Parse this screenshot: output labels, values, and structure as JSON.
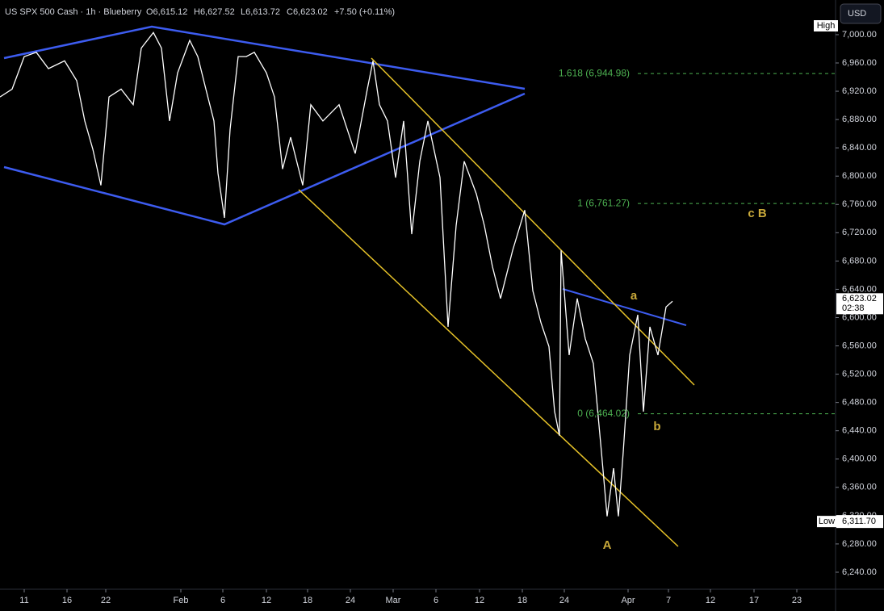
{
  "chart_data": {
    "type": "line",
    "title": "US SPX 500 Cash · 1h · Blueberry",
    "ohlc": [
      "O6,615.12",
      "H6,627.52",
      "L6,613.72",
      "C6,623.02"
    ],
    "change": "+7.50 (+0.11%)",
    "currency": "USD",
    "color": "#ffffff",
    "x": [
      0,
      3,
      6,
      9,
      12,
      16,
      19,
      21,
      23,
      25,
      27,
      30,
      33,
      35,
      38,
      40,
      42,
      44,
      47,
      49,
      51,
      53,
      54,
      55.6,
      57,
      59,
      61,
      63,
      66,
      68,
      70,
      72,
      75,
      77,
      80,
      84,
      88,
      91,
      92.4,
      94,
      96,
      98,
      100,
      102,
      104,
      106,
      109,
      111,
      113,
      115,
      118,
      120,
      122,
      124,
      127,
      130,
      132,
      134,
      136,
      137.4,
      138.6,
      139,
      141,
      143,
      145,
      147,
      149,
      150.4,
      152,
      153.2,
      154.4,
      156,
      158,
      159.4,
      161,
      163,
      165,
      166.6
    ],
    "values": [
      6912,
      6923,
      6969,
      6975,
      6952,
      6963,
      6935,
      6878,
      6838,
      6787,
      6912,
      6923,
      6901,
      6981,
      7003,
      6981,
      6878,
      6946,
      6992,
      6969,
      6923,
      6878,
      6804,
      6741,
      6866,
      6969,
      6969,
      6975,
      6946,
      6912,
      6810,
      6855,
      6787,
      6901,
      6878,
      6901,
      6832,
      6923,
      6963,
      6901,
      6878,
      6798,
      6878,
      6718,
      6821,
      6878,
      6798,
      6587,
      6730,
      6821,
      6775,
      6730,
      6672,
      6627,
      6695,
      6752,
      6638,
      6593,
      6559,
      6467,
      6433,
      6695,
      6547,
      6627,
      6570,
      6535,
      6410,
      6319,
      6387,
      6319,
      6410,
      6547,
      6604,
      6467,
      6587,
      6547,
      6615,
      6623
    ],
    "xlim": [
      0,
      207
    ],
    "ylim": [
      6216,
      7049
    ],
    "xticks": [
      {
        "value": 6,
        "label": "11"
      },
      {
        "value": 16.6,
        "label": "16"
      },
      {
        "value": 26.2,
        "label": "22"
      },
      {
        "value": 44.8,
        "label": "Feb"
      },
      {
        "value": 55.2,
        "label": "6"
      },
      {
        "value": 66,
        "label": "12"
      },
      {
        "value": 76.2,
        "label": "18"
      },
      {
        "value": 86.8,
        "label": "24"
      },
      {
        "value": 97.4,
        "label": "Mar"
      },
      {
        "value": 108,
        "label": "6"
      },
      {
        "value": 118.8,
        "label": "12"
      },
      {
        "value": 129.4,
        "label": "18"
      },
      {
        "value": 139.8,
        "label": "24"
      },
      {
        "value": 155.6,
        "label": "Apr"
      },
      {
        "value": 165.6,
        "label": "7"
      },
      {
        "value": 176,
        "label": "12"
      },
      {
        "value": 186.8,
        "label": "17"
      },
      {
        "value": 197.4,
        "label": "23"
      }
    ],
    "yticks": [
      {
        "value": 6240,
        "label": "6,240.00"
      },
      {
        "value": 6280,
        "label": "6,280.00"
      },
      {
        "value": 6320,
        "label": "6,320.00"
      },
      {
        "value": 6360,
        "label": "6,360.00"
      },
      {
        "value": 6400,
        "label": "6,400.00"
      },
      {
        "value": 6440,
        "label": "6,440.00"
      },
      {
        "value": 6480,
        "label": "6,480.00"
      },
      {
        "value": 6520,
        "label": "6,520.00"
      },
      {
        "value": 6560,
        "label": "6,560.00"
      },
      {
        "value": 6600,
        "label": "6,600.00"
      },
      {
        "value": 6640,
        "label": "6,640.00"
      },
      {
        "value": 6680,
        "label": "6,680.00"
      },
      {
        "value": 6720,
        "label": "6,720.00"
      },
      {
        "value": 6760,
        "label": "6,760.00"
      },
      {
        "value": 6800,
        "label": "6,800.00"
      },
      {
        "value": 6840,
        "label": "6,840.00"
      },
      {
        "value": 6880,
        "label": "6,880.00"
      },
      {
        "value": 6920,
        "label": "6,920.00"
      },
      {
        "value": 6960,
        "label": "6,960.00"
      },
      {
        "value": 7000,
        "label": "7,000.00"
      }
    ],
    "fib_levels": [
      {
        "value": 6944.98,
        "label": "1.618 (6,944.98)"
      },
      {
        "value": 6761.27,
        "label": "1 (6,761.27)"
      },
      {
        "value": 6464.02,
        "label": "0 (6,464.02)"
      }
    ],
    "annotations": [
      "a",
      "b",
      "A",
      "c B"
    ],
    "price_tags": {
      "high_label": "High",
      "last": 6623.02,
      "last_label": "6,623.02",
      "countdown": "02:38",
      "low_label": "Low",
      "low": 6311.7,
      "low_text": "6,311.70"
    }
  }
}
